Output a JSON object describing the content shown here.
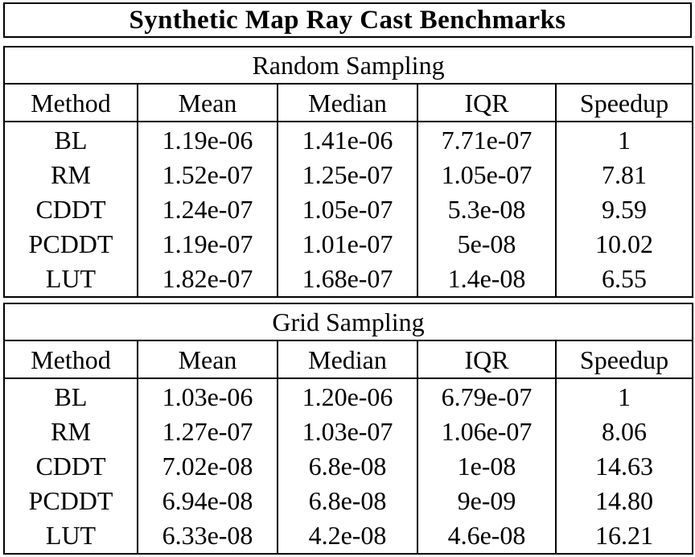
{
  "title": "Synthetic Map Ray Cast Benchmarks",
  "columns": [
    "Method",
    "Mean",
    "Median",
    "IQR",
    "Speedup"
  ],
  "sections": [
    {
      "name": "Random Sampling",
      "rows": [
        [
          "BL",
          "1.19e-06",
          "1.41e-06",
          "7.71e-07",
          "1"
        ],
        [
          "RM",
          "1.52e-07",
          "1.25e-07",
          "1.05e-07",
          "7.81"
        ],
        [
          "CDDT",
          "1.24e-07",
          "1.05e-07",
          "5.3e-08",
          "9.59"
        ],
        [
          "PCDDT",
          "1.19e-07",
          "1.01e-07",
          "5e-08",
          "10.02"
        ],
        [
          "LUT",
          "1.82e-07",
          "1.68e-07",
          "1.4e-08",
          "6.55"
        ]
      ]
    },
    {
      "name": "Grid Sampling",
      "rows": [
        [
          "BL",
          "1.03e-06",
          "1.20e-06",
          "6.79e-07",
          "1"
        ],
        [
          "RM",
          "1.27e-07",
          "1.03e-07",
          "1.06e-07",
          "8.06"
        ],
        [
          "CDDT",
          "7.02e-08",
          "6.8e-08",
          "1e-08",
          "14.63"
        ],
        [
          "PCDDT",
          "6.94e-08",
          "6.8e-08",
          "9e-09",
          "14.80"
        ],
        [
          "LUT",
          "6.33e-08",
          "4.2e-08",
          "4.6e-08",
          "16.21"
        ]
      ]
    }
  ]
}
